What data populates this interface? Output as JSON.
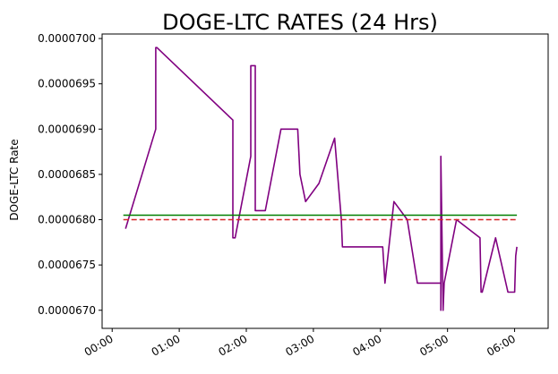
{
  "chart_data": {
    "type": "line",
    "title": "DOGE-LTC RATES (24 Hrs)",
    "xlabel": "",
    "ylabel": "DOGE-LTC Rate",
    "xlim": [
      "23:51",
      "06:30"
    ],
    "ylim": [
      6.68e-05,
      7.005e-05
    ],
    "x_ticks": [
      "00:00",
      "01:00",
      "02:00",
      "03:00",
      "04:00",
      "05:00",
      "06:00"
    ],
    "y_ticks": [
      "0.0000670",
      "0.0000675",
      "0.0000680",
      "0.0000685",
      "0.0000690",
      "0.0000695",
      "0.0000700"
    ],
    "grid": false,
    "legend": "none",
    "colors": {
      "rate": "#800080",
      "mean": "#008000",
      "median": "#d62728"
    },
    "series": [
      {
        "style": "solid",
        "color": "#800080",
        "x": [
          "00:12",
          "00:39",
          "00:39",
          "00:40",
          "01:48",
          "01:48",
          "01:49",
          "01:50",
          "02:04",
          "02:04",
          "02:08",
          "02:08",
          "02:10",
          "02:13",
          "02:17",
          "02:31",
          "02:33",
          "02:37",
          "02:46",
          "02:48",
          "02:53",
          "03:05",
          "03:19",
          "03:25",
          "03:26",
          "03:27",
          "03:48",
          "04:02",
          "04:04",
          "04:12",
          "04:24",
          "04:33",
          "04:54",
          "04:54",
          "04:54",
          "04:56",
          "04:57",
          "05:08",
          "05:29",
          "05:30",
          "05:31",
          "05:43",
          "05:54",
          "06:00",
          "06:01",
          "06:02"
        ],
        "y": [
          6.79e-05,
          6.9e-05,
          6.99e-05,
          6.99e-05,
          6.91e-05,
          6.78e-05,
          6.78e-05,
          6.78e-05,
          6.87e-05,
          6.97e-05,
          6.97e-05,
          6.81e-05,
          6.81e-05,
          6.81e-05,
          6.81e-05,
          6.9e-05,
          6.9e-05,
          6.9e-05,
          6.9e-05,
          6.85e-05,
          6.82e-05,
          6.84e-05,
          6.89e-05,
          6.8e-05,
          6.77e-05,
          6.77e-05,
          6.77e-05,
          6.77e-05,
          6.73e-05,
          6.82e-05,
          6.8e-05,
          6.73e-05,
          6.73e-05,
          6.7e-05,
          6.87e-05,
          6.7e-05,
          6.73e-05,
          6.8e-05,
          6.78e-05,
          6.72e-05,
          6.72e-05,
          6.78e-05,
          6.72e-05,
          6.72e-05,
          6.76e-05,
          6.77e-05
        ]
      },
      {
        "style": "solid",
        "color": "#008000",
        "x": [
          "00:10",
          "06:02"
        ],
        "y": [
          6.805e-05,
          6.805e-05
        ]
      },
      {
        "style": "dashed",
        "color": "#d62728",
        "x": [
          "00:10",
          "06:02"
        ],
        "y": [
          6.8e-05,
          6.8e-05
        ]
      }
    ]
  }
}
